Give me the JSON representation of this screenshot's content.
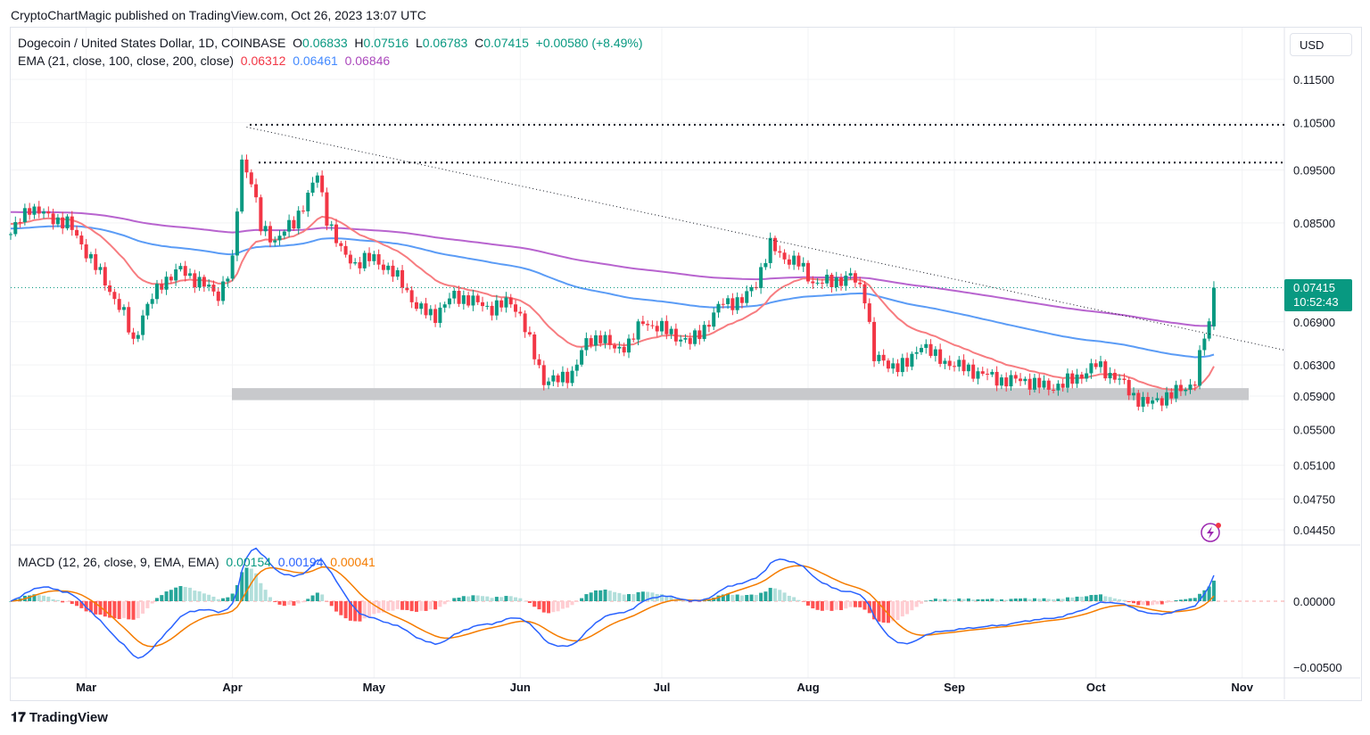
{
  "publisher_line": "CryptoChartMagic published on TradingView.com, Oct 26, 2023 13:07 UTC",
  "currency": "USD",
  "brand": "TradingView",
  "symbol": {
    "title": "Dogecoin / United States Dollar, 1D, COINBASE",
    "o_label": "O",
    "o": "0.06833",
    "h_label": "H",
    "h": "0.07516",
    "l_label": "L",
    "l": "0.06783",
    "c_label": "C",
    "c": "0.07415",
    "change": "+0.00580 (+8.49%)"
  },
  "ema": {
    "label": "EMA (21, close, 100, close, 200, close)",
    "v21": "0.06312",
    "v100": "0.06461",
    "v200": "0.06846"
  },
  "macd": {
    "label": "MACD (12, 26, close, 9, EMA, EMA)",
    "hist": "0.00154",
    "macd": "0.00194",
    "signal": "0.00041"
  },
  "price_tag": {
    "price": "0.07415",
    "countdown": "10:52:43"
  },
  "colors": {
    "up": "#089981",
    "down": "#f23645",
    "ema21": "#f77c80",
    "ema100": "#5b9cf6",
    "ema200": "#b864cf",
    "macd": "#2962ff",
    "signal": "#f57c00"
  },
  "chart_data": {
    "type": "candlestick",
    "scale": "log",
    "y_ticks": [
      "0.11500",
      "0.10500",
      "0.09500",
      "0.08500",
      "0.06900",
      "0.06300",
      "0.05900",
      "0.05500",
      "0.05100",
      "0.04750",
      "0.04450"
    ],
    "macd_ticks": [
      "0.00000",
      "-0.00500"
    ],
    "x_ticks": [
      {
        "label": "Mar",
        "day": 16
      },
      {
        "label": "Apr",
        "day": 47
      },
      {
        "label": "May",
        "day": 77
      },
      {
        "label": "Jun",
        "day": 108
      },
      {
        "label": "Jul",
        "day": 138
      },
      {
        "label": "Aug",
        "day": 169
      },
      {
        "label": "Sep",
        "day": 200
      },
      {
        "label": "Oct",
        "day": 230
      },
      {
        "label": "Nov",
        "day": 261
      }
    ],
    "start_date": "2023-02-13",
    "close_keyframes": [
      [
        0,
        0.083
      ],
      [
        4,
        0.088
      ],
      [
        8,
        0.086
      ],
      [
        12,
        0.085
      ],
      [
        16,
        0.08
      ],
      [
        20,
        0.075
      ],
      [
        24,
        0.07
      ],
      [
        26,
        0.066
      ],
      [
        28,
        0.07
      ],
      [
        32,
        0.075
      ],
      [
        36,
        0.077
      ],
      [
        40,
        0.075
      ],
      [
        44,
        0.073
      ],
      [
        47,
        0.078
      ],
      [
        49,
        0.097
      ],
      [
        51,
        0.093
      ],
      [
        53,
        0.084
      ],
      [
        56,
        0.082
      ],
      [
        60,
        0.085
      ],
      [
        63,
        0.09
      ],
      [
        65,
        0.094
      ],
      [
        67,
        0.086
      ],
      [
        70,
        0.08
      ],
      [
        73,
        0.078
      ],
      [
        77,
        0.079
      ],
      [
        80,
        0.077
      ],
      [
        83,
        0.075
      ],
      [
        86,
        0.071
      ],
      [
        90,
        0.07
      ],
      [
        94,
        0.073
      ],
      [
        98,
        0.072
      ],
      [
        102,
        0.071
      ],
      [
        106,
        0.072
      ],
      [
        108,
        0.07
      ],
      [
        110,
        0.066
      ],
      [
        113,
        0.061
      ],
      [
        116,
        0.061
      ],
      [
        119,
        0.062
      ],
      [
        122,
        0.066
      ],
      [
        125,
        0.067
      ],
      [
        128,
        0.065
      ],
      [
        131,
        0.066
      ],
      [
        134,
        0.069
      ],
      [
        138,
        0.068
      ],
      [
        141,
        0.067
      ],
      [
        144,
        0.066
      ],
      [
        148,
        0.069
      ],
      [
        151,
        0.072
      ],
      [
        155,
        0.072
      ],
      [
        158,
        0.075
      ],
      [
        161,
        0.081
      ],
      [
        164,
        0.079
      ],
      [
        167,
        0.078
      ],
      [
        170,
        0.075
      ],
      [
        174,
        0.075
      ],
      [
        178,
        0.076
      ],
      [
        181,
        0.073
      ],
      [
        183,
        0.064
      ],
      [
        186,
        0.063
      ],
      [
        190,
        0.063
      ],
      [
        193,
        0.066
      ],
      [
        196,
        0.064
      ],
      [
        200,
        0.063
      ],
      [
        205,
        0.062
      ],
      [
        210,
        0.061
      ],
      [
        215,
        0.061
      ],
      [
        220,
        0.06
      ],
      [
        225,
        0.061
      ],
      [
        230,
        0.063
      ],
      [
        235,
        0.061
      ],
      [
        238,
        0.059
      ],
      [
        241,
        0.058
      ],
      [
        245,
        0.059
      ],
      [
        249,
        0.06
      ],
      [
        251,
        0.061
      ],
      [
        253,
        0.067
      ],
      [
        254,
        0.06833
      ],
      [
        255,
        0.07415
      ]
    ],
    "last_candle": {
      "o": 0.06833,
      "h": 0.07516,
      "l": 0.06783,
      "c": 0.07415
    },
    "resistance_levels": [
      0.1045,
      0.0965
    ],
    "support_zone": [
      0.0585,
      0.06
    ],
    "trendline": [
      [
        50,
        0.104
      ],
      [
        270,
        0.065
      ]
    ],
    "ema_seed": {
      "ema21": 0.085,
      "ema100": 0.084,
      "ema200": 0.087
    }
  }
}
